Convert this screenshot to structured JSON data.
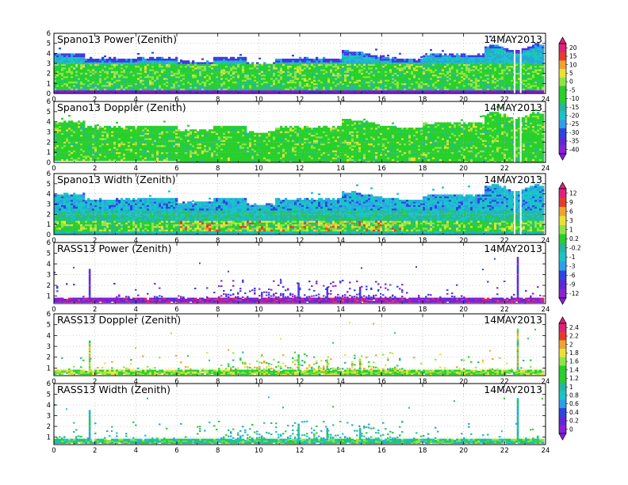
{
  "colors": {
    "violet": "#8b1fd8",
    "purple": "#5a2ad8",
    "blue": "#2c45e0",
    "lightblue": "#2aa0ec",
    "cyan": "#19c4c8",
    "teal": "#22b8a0",
    "green": "#27d02b",
    "lightgreen": "#8ee642",
    "yellow": "#e8e233",
    "orange": "#f0a32d",
    "red": "#e83a2c",
    "magenta": "#e0207a"
  },
  "chart_data": [
    {
      "type": "heatmap",
      "title": "Spano13 Power (Zenith)",
      "date": "14MAY2013",
      "x_ticks": [
        "0",
        "2",
        "4",
        "6",
        "8",
        "10",
        "12",
        "14",
        "16",
        "18",
        "20",
        "22",
        "24"
      ],
      "y_ticks": [
        "0",
        "1",
        "2",
        "3",
        "4",
        "5",
        "6"
      ],
      "xlim": [
        0,
        24
      ],
      "ylim": [
        0,
        6
      ],
      "colorbar_group": 0
    },
    {
      "type": "heatmap",
      "title": "Spano13 Doppler (Zenith)",
      "date": "14MAY2013",
      "x_ticks": [
        "0",
        "2",
        "4",
        "6",
        "8",
        "10",
        "12",
        "14",
        "16",
        "18",
        "20",
        "22",
        "24"
      ],
      "y_ticks": [
        "0",
        "1",
        "2",
        "3",
        "4",
        "5",
        "6"
      ],
      "xlim": [
        0,
        24
      ],
      "ylim": [
        0,
        6
      ],
      "colorbar_group": 0
    },
    {
      "type": "heatmap",
      "title": "Spano13 Width (Zenith)",
      "date": "14MAY2013",
      "x_ticks": [
        "0",
        "2",
        "4",
        "6",
        "8",
        "10",
        "12",
        "14",
        "16",
        "18",
        "20",
        "22",
        "24"
      ],
      "y_ticks": [
        "0",
        "1",
        "2",
        "3",
        "4",
        "5",
        "6"
      ],
      "xlim": [
        0,
        24
      ],
      "ylim": [
        0,
        6
      ],
      "colorbar_group": 1
    },
    {
      "type": "heatmap",
      "title": "RASS13 Power (Zenith)",
      "date": "14MAY2013",
      "x_ticks": [
        "0",
        "2",
        "4",
        "6",
        "8",
        "10",
        "12",
        "14",
        "16",
        "18",
        "20",
        "22",
        "24"
      ],
      "y_ticks": [
        "1",
        "2",
        "3",
        "4",
        "5",
        "6"
      ],
      "xlim": [
        0,
        24
      ],
      "ylim": [
        0.3,
        6
      ],
      "colorbar_group": 1
    },
    {
      "type": "heatmap",
      "title": "RASS13 Doppler (Zenith)",
      "date": "14MAY2013",
      "x_ticks": [
        "0",
        "2",
        "4",
        "6",
        "8",
        "10",
        "12",
        "14",
        "16",
        "18",
        "20",
        "22",
        "24"
      ],
      "y_ticks": [
        "1",
        "2",
        "3",
        "4",
        "5",
        "6"
      ],
      "xlim": [
        0,
        24
      ],
      "ylim": [
        0.3,
        6
      ],
      "colorbar_group": 2
    },
    {
      "type": "heatmap",
      "title": "RASS13 Width (Zenith)",
      "date": "14MAY2013",
      "x_ticks": [
        "0",
        "2",
        "4",
        "6",
        "8",
        "10",
        "12",
        "14",
        "16",
        "18",
        "20",
        "22",
        "24"
      ],
      "y_ticks": [
        "1",
        "2",
        "3",
        "4",
        "5",
        "6"
      ],
      "xlim": [
        0,
        24
      ],
      "ylim": [
        0.3,
        6
      ],
      "colorbar_group": 2
    }
  ],
  "colorbars": [
    {
      "labels": [
        "20",
        "15",
        "10",
        "5",
        "0",
        "-5",
        "-10",
        "-15",
        "-20",
        "-25",
        "-30",
        "-35",
        "-40"
      ]
    },
    {
      "labels": [
        "12",
        "9",
        "6",
        "3",
        "1",
        "0.2",
        "-0.2",
        "-1",
        "-3",
        "-6",
        "-9",
        "-12"
      ]
    },
    {
      "labels": [
        "2.4",
        "2.2",
        "2",
        "1.8",
        "1.6",
        "1.4",
        "1.2",
        "1",
        "0.8",
        "0.6",
        "0.4",
        "0.2",
        "0"
      ]
    }
  ]
}
